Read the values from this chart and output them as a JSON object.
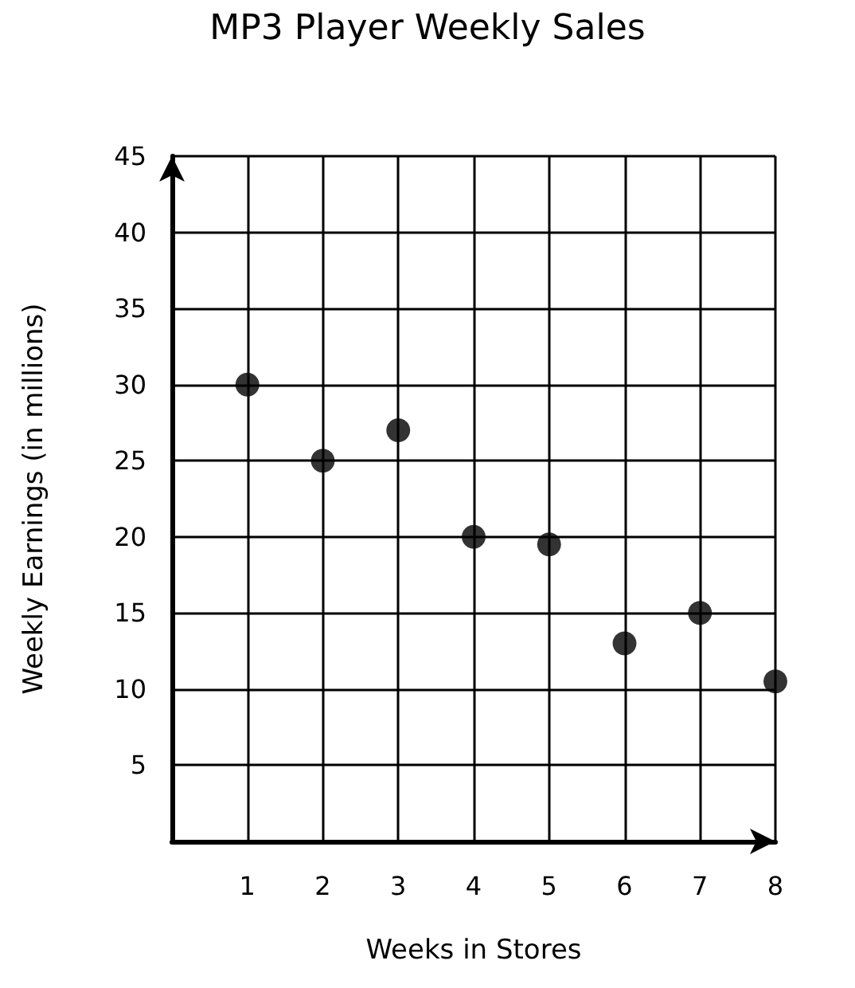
{
  "chart_data": {
    "type": "scatter",
    "title": "MP3 Player Weekly Sales",
    "xlabel": "Weeks in Stores",
    "ylabel": "Weekly Earnings (in millions)",
    "x": [
      1,
      2,
      3,
      4,
      5,
      6,
      7,
      8
    ],
    "values": [
      30,
      25,
      27,
      20,
      19.5,
      13,
      15,
      10.5
    ],
    "color": "#000000",
    "marker": "circle",
    "grid": true,
    "xlim": [
      0,
      8
    ],
    "xticks": [
      1,
      2,
      3,
      4,
      5,
      6,
      7,
      8
    ],
    "ylim": [
      0,
      45
    ],
    "yticks": [
      5,
      10,
      15,
      20,
      25,
      30,
      35,
      40,
      45
    ]
  }
}
